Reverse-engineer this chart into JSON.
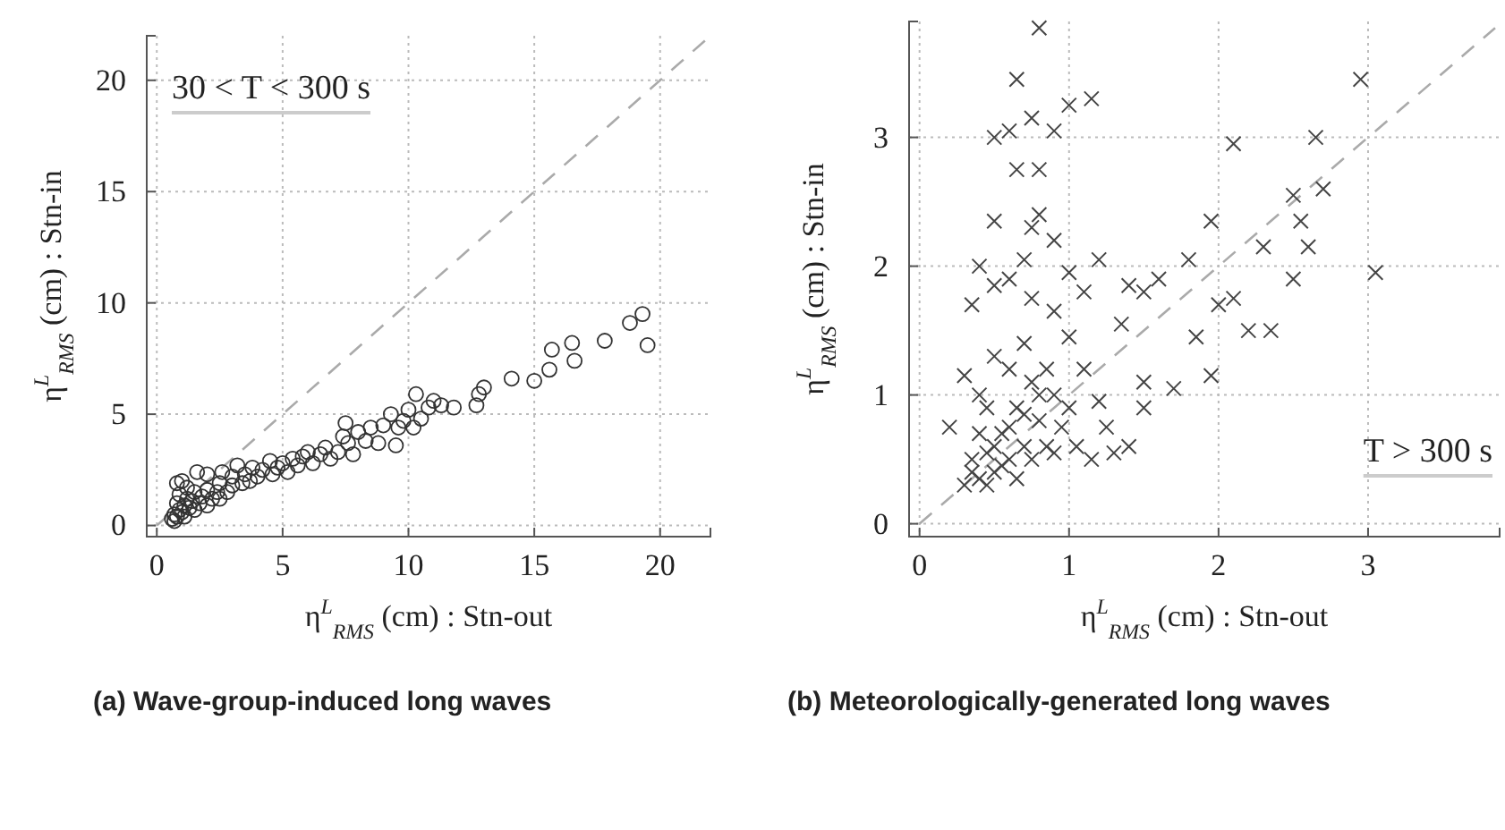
{
  "chart_data": [
    {
      "type": "scatter",
      "title": "(a) Wave-group-induced long waves",
      "xlabel": "η$^{L}$$_{RMS}$ (cm) : Stn-out",
      "ylabel": "η$^{L}$$_{RMS}$ (cm) : Stn-in",
      "annotations": [
        "30 < T < 300 s"
      ],
      "xlim": [
        -0.4,
        22
      ],
      "ylim": [
        -0.5,
        22
      ],
      "xticks": [
        0,
        5,
        10,
        15,
        20
      ],
      "yticks": [
        0,
        5,
        10,
        15,
        20
      ],
      "grid": true,
      "series": [
        {
          "type": "line",
          "x": [
            0,
            22
          ],
          "values": [
            0,
            22
          ],
          "color": "#aaaaaa",
          "line_style": "dashed"
        },
        {
          "marker": "circle",
          "color": "#333333",
          "x": [
            0.6,
            0.7,
            0.8,
            0.9,
            0.8,
            0.9,
            1.0,
            1.1,
            1.2,
            1.0,
            1.3,
            1.4,
            1.5,
            1.6,
            1.7,
            1.8,
            2.0,
            2.0,
            2.2,
            2.4,
            2.5,
            2.6,
            2.8,
            3.0,
            3.0,
            3.2,
            3.4,
            3.5,
            3.7,
            3.8,
            4.0,
            4.2,
            4.5,
            4.6,
            4.8,
            5.0,
            5.2,
            5.4,
            5.6,
            5.8,
            6.0,
            6.2,
            6.5,
            6.7,
            6.9,
            7.2,
            7.4,
            7.5,
            7.6,
            7.8,
            8.0,
            8.3,
            8.5,
            8.8,
            9.0,
            9.3,
            9.5,
            9.6,
            9.8,
            10.0,
            10.2,
            10.3,
            10.5,
            10.8,
            11.0,
            11.3,
            11.8,
            12.7,
            12.8,
            13.0,
            14.1,
            15.0,
            15.6,
            15.7,
            16.5,
            16.6,
            17.8,
            18.8,
            19.3,
            19.5,
            0.7,
            1.1,
            1.5,
            2.0,
            2.5,
            1.2,
            0.8
          ],
          "values": [
            0.3,
            0.5,
            0.4,
            0.7,
            1.0,
            1.4,
            0.6,
            0.9,
            1.2,
            2.0,
            0.8,
            1.1,
            1.5,
            2.4,
            1.0,
            1.3,
            1.6,
            2.3,
            1.2,
            1.5,
            1.9,
            2.4,
            1.5,
            1.8,
            2.2,
            2.7,
            1.9,
            2.3,
            2.0,
            2.6,
            2.2,
            2.5,
            2.9,
            2.3,
            2.6,
            2.8,
            2.4,
            3.0,
            2.7,
            3.1,
            3.3,
            2.8,
            3.2,
            3.5,
            3.0,
            3.3,
            4.0,
            4.6,
            3.7,
            3.2,
            4.2,
            3.8,
            4.4,
            3.7,
            4.5,
            5.0,
            3.6,
            4.4,
            4.7,
            5.2,
            4.4,
            5.9,
            4.8,
            5.3,
            5.6,
            5.4,
            5.3,
            5.4,
            5.9,
            6.2,
            6.6,
            6.5,
            7.0,
            7.9,
            8.2,
            7.4,
            8.3,
            9.1,
            9.5,
            8.1,
            0.2,
            0.4,
            0.7,
            0.9,
            1.2,
            1.7,
            1.9
          ]
        }
      ]
    },
    {
      "type": "scatter",
      "title": "(b) Meteorologically-generated long waves",
      "xlabel": "η$^{L}$$_{RMS}$ (cm) : Stn-out",
      "ylabel": "η$^{L}$$_{RMS}$ (cm) : Stn-in",
      "annotations": [
        "T > 300 s"
      ],
      "xlim": [
        -0.07,
        3.88
      ],
      "ylim": [
        -0.1,
        3.9
      ],
      "xticks": [
        0,
        1,
        2,
        3
      ],
      "yticks": [
        0,
        1,
        2,
        3
      ],
      "grid": true,
      "series": [
        {
          "type": "line",
          "x": [
            0,
            3.85
          ],
          "values": [
            0,
            3.85
          ],
          "color": "#aaaaaa",
          "line_style": "dashed"
        },
        {
          "marker": "cross",
          "color": "#444444",
          "x": [
            0.8,
            0.65,
            1.15,
            1.0,
            0.75,
            0.5,
            0.6,
            0.9,
            0.65,
            0.8,
            0.5,
            0.8,
            0.75,
            0.4,
            0.7,
            0.9,
            1.0,
            1.2,
            0.35,
            0.5,
            0.6,
            0.75,
            0.9,
            1.1,
            1.4,
            1.5,
            1.6,
            1.8,
            1.95,
            2.1,
            2.65,
            2.95,
            2.5,
            2.7,
            2.55,
            2.3,
            2.6,
            2.0,
            2.1,
            2.2,
            2.35,
            2.5,
            3.05,
            1.7,
            1.95,
            1.85,
            1.35,
            1.5,
            1.2,
            1.0,
            0.2,
            0.3,
            0.35,
            0.4,
            0.45,
            0.5,
            0.55,
            0.6,
            0.65,
            0.7,
            0.75,
            0.8,
            0.85,
            0.9,
            0.95,
            1.0,
            1.05,
            1.1,
            1.15,
            1.3,
            1.5,
            0.4,
            0.45,
            0.5,
            0.55,
            0.6,
            0.65,
            0.7,
            0.75,
            0.8,
            0.85,
            0.9,
            0.35,
            0.3,
            0.4,
            0.5,
            0.6,
            0.7,
            0.45,
            1.25,
            1.4
          ],
          "values": [
            3.85,
            3.45,
            3.3,
            3.25,
            3.15,
            3.0,
            3.05,
            3.05,
            2.75,
            2.75,
            2.35,
            2.4,
            2.3,
            2.0,
            2.05,
            2.2,
            1.95,
            2.05,
            1.7,
            1.85,
            1.9,
            1.75,
            1.65,
            1.8,
            1.85,
            1.8,
            1.9,
            2.05,
            2.35,
            2.95,
            3.0,
            3.45,
            2.55,
            2.6,
            2.35,
            2.15,
            2.15,
            1.7,
            1.75,
            1.5,
            1.5,
            1.9,
            1.95,
            1.05,
            1.15,
            1.45,
            1.55,
            1.1,
            0.95,
            1.45,
            0.75,
            1.15,
            0.5,
            0.35,
            0.55,
            0.4,
            0.7,
            0.5,
            0.9,
            0.6,
            1.1,
            0.8,
            0.6,
            1.0,
            0.75,
            0.9,
            0.6,
            1.2,
            0.5,
            0.55,
            0.9,
            0.7,
            0.3,
            0.6,
            0.45,
            0.75,
            0.35,
            0.85,
            0.5,
            1.0,
            1.2,
            0.55,
            0.4,
            0.3,
            1.0,
            1.3,
            1.2,
            1.4,
            0.9,
            0.75,
            0.6
          ]
        }
      ]
    }
  ]
}
